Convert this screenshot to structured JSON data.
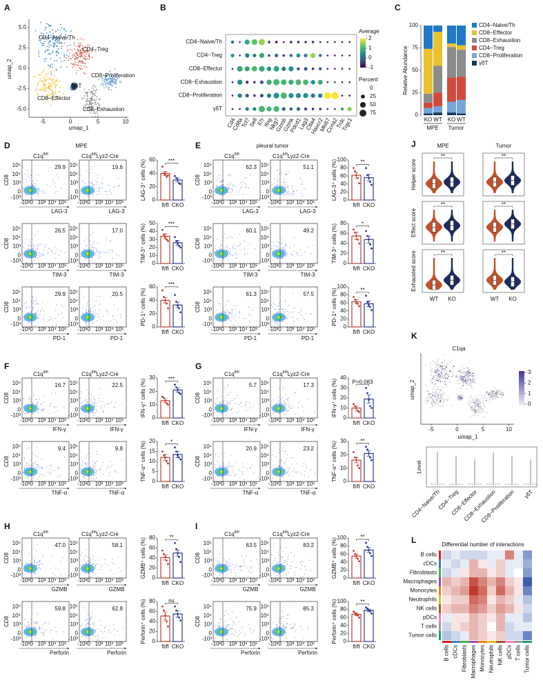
{
  "umap": {
    "label": "A",
    "xlabel": "umap_1",
    "ylabel": "umap_2",
    "xlim": [
      -7.5,
      10.5
    ],
    "ylim": [
      -6,
      6
    ],
    "xticks": [
      -5,
      0,
      5,
      10
    ],
    "yticks": [
      {
        "value": -5,
        "label": "-5.0"
      },
      {
        "value": -2.5,
        "label": "-2.5"
      },
      {
        "value": 0,
        "label": "0.0"
      },
      {
        "value": 2.5,
        "label": "2.5"
      },
      {
        "value": 5,
        "label": "5.0"
      }
    ],
    "clusters": [
      "CD4−Naive/Th",
      "CD4−Treg",
      "CD8−Proliferation",
      "γδT",
      "CD8−Effector",
      "CD8−Exhaustion"
    ]
  },
  "dotplot": {
    "label": "B",
    "rows": [
      "CD4−Naive/Th",
      "CD4−Treg",
      "CD8−Effector",
      "CD8−Exhaustion",
      "CD8−Proliferation",
      "γδT"
    ],
    "genes": [
      "Cd4",
      "Cd8a",
      "Tcf7",
      "Sell",
      "Il7r",
      "Ifng",
      "Nkg7",
      "Gzmb",
      "Gzmk",
      "Pdcd1",
      "Lag3",
      "Ctla4",
      "Havcr2",
      "Mki67",
      "Ccna2",
      "Trdc",
      "Trgc1"
    ],
    "average": [
      [
        0,
        -0.5,
        0.8,
        1.2,
        1.5,
        -0.5,
        -0.8,
        -1,
        -0.5,
        -0.5,
        -0.8,
        -0.5,
        -0.8,
        -0.8,
        -0.8,
        -0.8,
        -0.8
      ],
      [
        0.5,
        -0.8,
        0.3,
        0.2,
        0.8,
        -0.3,
        0,
        -0.5,
        0,
        0.5,
        0.3,
        1.5,
        0,
        -0.8,
        -0.8,
        -0.8,
        -0.8
      ],
      [
        -0.8,
        0.8,
        0.8,
        1,
        0.8,
        0.5,
        0.8,
        0.3,
        0.5,
        -0.3,
        -0.2,
        -0.5,
        -0.2,
        -0.8,
        -0.8,
        -0.8,
        -0.8
      ],
      [
        -0.8,
        0.5,
        -0.5,
        -0.5,
        -0.3,
        0.8,
        1,
        1,
        0.8,
        1,
        1,
        0.5,
        0.8,
        -0.5,
        -0.5,
        -0.8,
        -0.8
      ],
      [
        -0.8,
        0.3,
        -0.3,
        -0.5,
        -0.3,
        0.3,
        0.5,
        1,
        0.5,
        0.5,
        0.5,
        0.3,
        0.3,
        2,
        2,
        -0.8,
        -0.8
      ],
      [
        -0.8,
        -0.8,
        0.3,
        0.3,
        1,
        1,
        1,
        0,
        -0.3,
        0,
        -0.3,
        -0.5,
        -0.5,
        -0.8,
        -0.8,
        0.8,
        1.5
      ]
    ],
    "percent": [
      [
        15,
        5,
        40,
        50,
        60,
        10,
        10,
        5,
        10,
        10,
        8,
        10,
        5,
        5,
        5,
        5,
        5
      ],
      [
        20,
        5,
        30,
        20,
        40,
        10,
        20,
        10,
        15,
        25,
        20,
        40,
        15,
        5,
        5,
        5,
        5
      ],
      [
        5,
        50,
        40,
        45,
        50,
        30,
        50,
        30,
        40,
        15,
        20,
        10,
        15,
        5,
        5,
        5,
        5
      ],
      [
        5,
        40,
        15,
        10,
        20,
        40,
        60,
        50,
        40,
        50,
        45,
        30,
        35,
        5,
        5,
        5,
        5
      ],
      [
        5,
        30,
        20,
        10,
        20,
        30,
        50,
        60,
        40,
        40,
        40,
        30,
        30,
        70,
        75,
        5,
        5
      ],
      [
        5,
        5,
        20,
        20,
        60,
        40,
        50,
        20,
        15,
        20,
        15,
        10,
        10,
        5,
        5,
        15,
        30
      ]
    ],
    "average_title": "Average",
    "average_ticks": [
      2,
      1,
      0,
      -1
    ],
    "percent_title": "Percent",
    "percent_ticks": [
      0,
      25,
      50,
      75
    ]
  },
  "abundance": {
    "label": "C",
    "type": "bar",
    "ylabel": "Relative Abundance",
    "categories": [
      "KO",
      "WT",
      "KO",
      "WT"
    ],
    "groups": [
      "MPE",
      "Tumor"
    ],
    "ylim": [
      0,
      100
    ],
    "yticks": [
      0,
      25,
      50,
      75,
      100
    ],
    "series": [
      {
        "name": "CD4−Naive/Th",
        "color": "#1f78c8",
        "values": [
          26,
          7,
          20,
          22
        ]
      },
      {
        "name": "CD8−Effector",
        "color": "#e9c230",
        "values": [
          50,
          38,
          4,
          5
        ]
      },
      {
        "name": "CD8−Exhaustion",
        "color": "#8c8c8c",
        "values": [
          10,
          30,
          34,
          30
        ]
      },
      {
        "name": "CD4−Treg",
        "color": "#d04a3c",
        "values": [
          6,
          15,
          27,
          26
        ]
      },
      {
        "name": "CD8−Proliferation",
        "color": "#74a6da",
        "values": [
          6,
          7,
          12,
          15
        ]
      },
      {
        "name": "γδT",
        "color": "#183a5a",
        "values": [
          2,
          3,
          3,
          2
        ]
      }
    ]
  },
  "flow": {
    "ylabel": "CD8",
    "gene": "C1q",
    "genotype": "fl/fl",
    "cre": "Lyz2-Cre",
    "tick_labels": [
      "-10³",
      "0",
      "10³",
      "10⁴",
      "10⁵"
    ],
    "groups": [
      "fl/fl",
      "CKO"
    ],
    "colors": [
      "#c23b2b",
      "#2b3a8f"
    ]
  },
  "flow_panels": [
    {
      "label": "D",
      "title": "MPE",
      "rows": [
        {
          "marker": "LAG-3",
          "gates": [
            "29.9",
            "19.6"
          ],
          "ylabel": "LAG-3⁺ cells (%)",
          "ylim": [
            0,
            60
          ],
          "yticks": [
            0,
            20,
            40,
            60
          ],
          "values": [
            40,
            30
          ],
          "errors": [
            3,
            3
          ],
          "points": [
            [
              50,
              40,
              38,
              35,
              37
            ],
            [
              36,
              33,
              30,
              25,
              24
            ]
          ],
          "sig": "***"
        },
        {
          "marker": "TIM-3",
          "gates": [
            "26.5",
            "17.0"
          ],
          "ylabel": "TIM-3⁺ cells (%)",
          "ylim": [
            0,
            50
          ],
          "yticks": [
            0,
            10,
            20,
            30,
            40,
            50
          ],
          "values": [
            34,
            26
          ],
          "errors": [
            3,
            3
          ],
          "points": [
            [
              42,
              36,
              33,
              30,
              28
            ],
            [
              33,
              28,
              25,
              22,
              20
            ]
          ],
          "sig": "***"
        },
        {
          "marker": "PD-1",
          "gates": [
            "29.9",
            "20.5"
          ],
          "ylabel": "PD-1⁺ cells (%)",
          "ylim": [
            0,
            60
          ],
          "yticks": [
            0,
            20,
            40,
            60
          ],
          "values": [
            40,
            33
          ],
          "errors": [
            4,
            4
          ],
          "points": [
            [
              55,
              45,
              40,
              35,
              28
            ],
            [
              48,
              38,
              32,
              28,
              22
            ]
          ],
          "sig": "***"
        }
      ]
    },
    {
      "label": "E",
      "title": "pleural tumor",
      "rows": [
        {
          "marker": "LAG-3",
          "gates": [
            "62.3",
            "51.1"
          ],
          "ylabel": "LAG-3⁺ cells (%)",
          "ylim": [
            0,
            100
          ],
          "yticks": [
            0,
            20,
            40,
            60,
            80,
            100
          ],
          "values": [
            62,
            56
          ],
          "errors": [
            7,
            8
          ],
          "points": [
            [
              80,
              72,
              62,
              55,
              42
            ],
            [
              80,
              62,
              55,
              45,
              38
            ]
          ],
          "sig": "**"
        },
        {
          "marker": "TIM-3",
          "gates": [
            "60.1",
            "49.2"
          ],
          "ylabel": "TIM-3⁺ cells (%)",
          "ylim": [
            0,
            80
          ],
          "yticks": [
            0,
            20,
            40,
            60,
            80
          ],
          "values": [
            55,
            48
          ],
          "errors": [
            7,
            7
          ],
          "points": [
            [
              68,
              62,
              55,
              48,
              40
            ],
            [
              65,
              55,
              48,
              38,
              30
            ]
          ],
          "sig": "*"
        },
        {
          "marker": "PD-1",
          "gates": [
            "61.3",
            "57.5"
          ],
          "ylabel": "PD-1⁺ cells (%)",
          "ylim": [
            0,
            100
          ],
          "yticks": [
            0,
            20,
            40,
            60,
            80,
            100
          ],
          "values": [
            63,
            58
          ],
          "errors": [
            5,
            7
          ],
          "points": [
            [
              75,
              68,
              62,
              58,
              52
            ],
            [
              78,
              62,
              55,
              50,
              42
            ]
          ],
          "sig": "**"
        }
      ]
    },
    {
      "label": "F",
      "rows": [
        {
          "marker": "IFN-γ",
          "gates": [
            "16.7",
            "22.5"
          ],
          "ylabel": "IFN-γ⁺ cells (%)",
          "ylim": [
            0,
            30
          ],
          "yticks": [
            0,
            10,
            20,
            30
          ],
          "values": [
            13,
            21
          ],
          "errors": [
            1.5,
            1.5
          ],
          "points": [
            [
              16,
              15,
              13,
              11,
              10
            ],
            [
              25,
              23,
              21,
              19,
              18
            ]
          ],
          "sig": "***"
        },
        {
          "marker": "TNF-α",
          "gates": [
            "9.4",
            "9.8"
          ],
          "ylabel": "TNF-α⁺ cells (%)",
          "ylim": [
            0,
            20
          ],
          "yticks": [
            0,
            5,
            10,
            15,
            20
          ],
          "values": [
            12,
            13.5
          ],
          "errors": [
            1.5,
            1.5
          ],
          "points": [
            [
              15,
              13,
              12,
              10,
              9
            ],
            [
              17,
              15,
              13,
              12,
              11
            ]
          ],
          "sig": "*"
        }
      ]
    },
    {
      "label": "G",
      "rows": [
        {
          "marker": "IFN-γ",
          "gates": [
            "5.7",
            "17.3"
          ],
          "ylabel": "IFN-γ⁺ cells (%)",
          "ylim": [
            0,
            40
          ],
          "yticks": [
            0,
            10,
            20,
            30,
            40
          ],
          "values": [
            10,
            19
          ],
          "errors": [
            2,
            4
          ],
          "points": [
            [
              14,
              12,
              10,
              7,
              6
            ],
            [
              30,
              25,
              18,
              12,
              10
            ]
          ],
          "sig": "P=0.083"
        },
        {
          "marker": "TNF-α",
          "gates": [
            "20.9",
            "23.2"
          ],
          "ylabel": "TNF-α⁺ cells (%)",
          "ylim": [
            0,
            30
          ],
          "yticks": [
            0,
            10,
            20,
            30
          ],
          "values": [
            16,
            21
          ],
          "errors": [
            2,
            2
          ],
          "points": [
            [
              22,
              18,
              16,
              12,
              10
            ],
            [
              26,
              24,
              21,
              18,
              16
            ]
          ],
          "sig": "**"
        }
      ]
    },
    {
      "label": "H",
      "rows": [
        {
          "marker": "GZMB",
          "gates": [
            "47.0",
            "58.1"
          ],
          "ylabel": "GZMB⁺ cells (%)",
          "ylim": [
            0,
            80
          ],
          "yticks": [
            0,
            20,
            40,
            60,
            80
          ],
          "values": [
            41,
            50
          ],
          "errors": [
            5,
            6
          ],
          "points": [
            [
              55,
              48,
              42,
              35,
              28
            ],
            [
              70,
              58,
              50,
              42,
              32
            ]
          ],
          "sig": "**"
        },
        {
          "marker": "Perforin",
          "gates": [
            "59.8",
            "62.8"
          ],
          "ylabel": "Perforin⁺ cells (%)",
          "ylim": [
            0,
            80
          ],
          "yticks": [
            0,
            20,
            40,
            60,
            80
          ],
          "values": [
            51,
            55
          ],
          "errors": [
            8,
            6
          ],
          "points": [
            [
              70,
              62,
              52,
              40,
              30
            ],
            [
              70,
              62,
              55,
              48,
              42
            ]
          ],
          "sig": "ns"
        }
      ]
    },
    {
      "label": "I",
      "rows": [
        {
          "marker": "GZMB",
          "gates": [
            "63.5",
            "83.2"
          ],
          "ylabel": "GZMB⁺ cells (%)",
          "ylim": [
            0,
            100
          ],
          "yticks": [
            0,
            20,
            40,
            60,
            80,
            100
          ],
          "values": [
            55,
            70
          ],
          "errors": [
            5,
            6
          ],
          "points": [
            [
              68,
              60,
              55,
              48,
              42
            ],
            [
              88,
              78,
              70,
              62,
              55
            ]
          ],
          "sig": "**"
        },
        {
          "marker": "Perforin",
          "gates": [
            "75.9",
            "85.3"
          ],
          "ylabel": "Perforin⁺ cells (%)",
          "ylim": [
            0,
            100
          ],
          "yticks": [
            0,
            20,
            40,
            60,
            80,
            100
          ],
          "values": [
            68,
            78
          ],
          "errors": [
            3,
            3
          ],
          "points": [
            [
              75,
              72,
              68,
              65,
              60
            ],
            [
              85,
              82,
              78,
              75,
              70
            ]
          ],
          "sig": "**"
        }
      ]
    }
  ],
  "violin": {
    "label": "J",
    "columns": [
      "MPE",
      "Tumor"
    ],
    "rows": [
      "Helper score",
      "Effect score",
      "Exhausted score"
    ],
    "groups": [
      "WT",
      "KO"
    ],
    "sig": "**",
    "colors": [
      "#c4502a",
      "#1d2c5c"
    ]
  },
  "expression": {
    "label": "K",
    "title": "C1qa",
    "xlabel": "umap_1",
    "ylabel": "umap_2",
    "xlim": [
      -7,
      11
    ],
    "xticks": [
      -5,
      0,
      5,
      10
    ],
    "legend_ticks": [
      3,
      2,
      1,
      0
    ],
    "level_label": "Level",
    "categories": [
      "CD4−Naive/Th",
      "CD4−Treg",
      "CD8−Effector",
      "CD8−Exhaustion",
      "CD8−Proliferation",
      "γδT"
    ]
  },
  "interactions": {
    "label": "L",
    "title": "Differential number of interactions",
    "cells": [
      "B cells",
      "cDCs",
      "Fibroblasts",
      "Macrophages",
      "Monocytes",
      "Neutrophils",
      "NK cells",
      "pDCs",
      "T cells",
      "Tumor cells"
    ],
    "colors": [
      "#e41a1c",
      "#377eb8",
      "#4daf4a",
      "#984ea3",
      "#ff7f00",
      "#d8c12a",
      "#a65628",
      "#f781bf",
      "#999999",
      "#1b9e77"
    ],
    "values": [
      [
        -0.2,
        -0.1,
        -0.2,
        -0.2,
        -0.2,
        -0.1,
        -0.1,
        0.5,
        -0.1,
        -0.5
      ],
      [
        -0.1,
        -0.2,
        -0.1,
        0.3,
        0.1,
        -0.1,
        0.2,
        -0.1,
        -0.1,
        -0.4
      ],
      [
        -0.2,
        -0.1,
        0.1,
        0.3,
        0.3,
        0.1,
        0.2,
        -0.1,
        0,
        -0.5
      ],
      [
        0.3,
        0.2,
        0.3,
        0.7,
        0.5,
        0.3,
        0.5,
        0.2,
        0.1,
        -0.8
      ],
      [
        0.2,
        0.3,
        0.4,
        0.8,
        0.6,
        0.2,
        0.6,
        0.3,
        0.1,
        -0.6
      ],
      [
        0.1,
        0.2,
        0.2,
        0.6,
        0.5,
        0.1,
        0.3,
        0.2,
        -0.1,
        -0.3
      ],
      [
        0.2,
        0.3,
        0.3,
        0.5,
        0.4,
        0.2,
        0.4,
        0.3,
        0.1,
        -0.2
      ],
      [
        -0.1,
        0.1,
        0.1,
        0.3,
        0.2,
        0.1,
        0.3,
        -0.1,
        -0.1,
        -0.3
      ],
      [
        -0.2,
        0.1,
        0.2,
        0.3,
        0.2,
        0,
        0.3,
        -0.2,
        -0.1,
        -0.1
      ],
      [
        -0.3,
        -0.2,
        -0.1,
        0.3,
        0.2,
        0.1,
        0.2,
        -0.2,
        -0.2,
        -0.6
      ]
    ]
  }
}
